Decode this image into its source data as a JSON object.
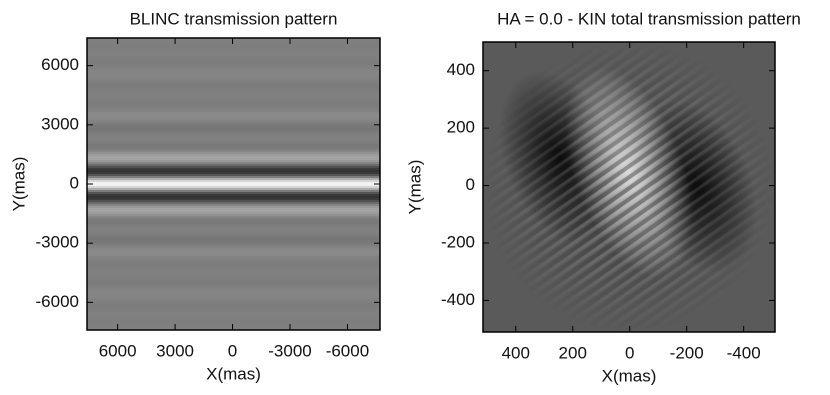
{
  "chart_data": [
    {
      "type": "image",
      "title": "BLINC transmission pattern",
      "x_label": "X(mas)",
      "y_label": "Y(mas)",
      "xlim": [
        7600,
        -7700
      ],
      "ylim": [
        -7400,
        7400
      ],
      "xticks": [
        6000,
        3000,
        0,
        -3000,
        -6000
      ],
      "yticks": [
        6000,
        3000,
        0,
        -3000,
        -6000
      ]
    },
    {
      "type": "image",
      "title": "HA = 0.0 - KIN total transmission pattern",
      "x_label": "X(mas)",
      "y_label": "Y(mas)",
      "xlim": [
        515,
        -510
      ],
      "ylim": [
        -510,
        500
      ],
      "xticks": [
        400,
        200,
        0,
        -200,
        -400
      ],
      "yticks": [
        400,
        200,
        0,
        -200,
        -400
      ]
    }
  ]
}
